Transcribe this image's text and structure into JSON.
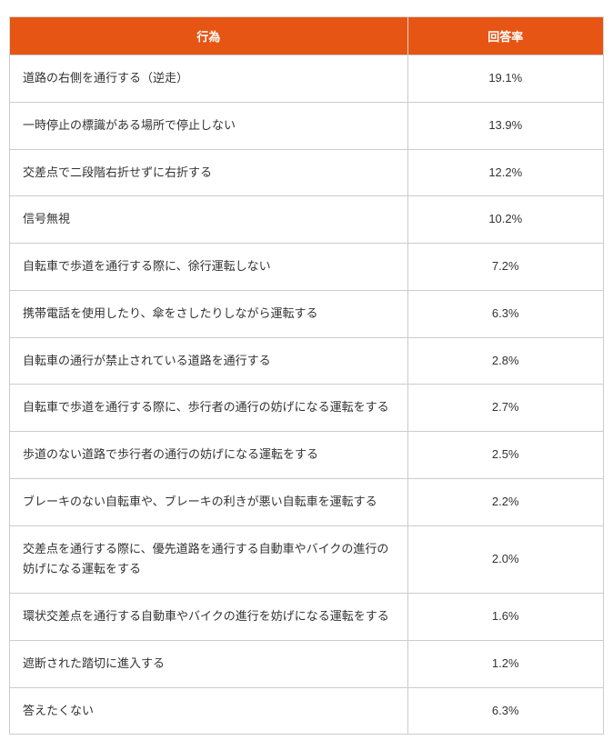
{
  "colors": {
    "header_bg": "#e65514",
    "header_text": "#ffffff",
    "border": "#cccccc",
    "body_text": "#333333",
    "row_bg": "#ffffff"
  },
  "table": {
    "columns": [
      {
        "label": "行為"
      },
      {
        "label": "回答率"
      }
    ],
    "rows": [
      {
        "action": "道路の右側を通行する（逆走）",
        "rate": "19.1%"
      },
      {
        "action": "一時停止の標識がある場所で停止しない",
        "rate": "13.9%"
      },
      {
        "action": "交差点で二段階右折せずに右折する",
        "rate": "12.2%"
      },
      {
        "action": "信号無視",
        "rate": "10.2%"
      },
      {
        "action": "自転車で歩道を通行する際に、徐行運転しない",
        "rate": "7.2%"
      },
      {
        "action": "携帯電話を使用したり、傘をさしたりしながら運転する",
        "rate": "6.3%"
      },
      {
        "action": "自転車の通行が禁止されている道路を通行する",
        "rate": "2.8%"
      },
      {
        "action": "自転車で歩道を通行する際に、歩行者の通行の妨げになる運転をする",
        "rate": "2.7%"
      },
      {
        "action": "歩道のない道路で歩行者の通行の妨げになる運転をする",
        "rate": "2.5%"
      },
      {
        "action": "ブレーキのない自転車や、ブレーキの利きが悪い自転車を運転する",
        "rate": "2.2%"
      },
      {
        "action": "交差点を通行する際に、優先道路を通行する自動車やバイクの進行の妨げになる運転をする",
        "rate": "2.0%"
      },
      {
        "action": "環状交差点を通行する自動車やバイクの進行を妨げになる運転をする",
        "rate": "1.6%"
      },
      {
        "action": "遮断された踏切に進入する",
        "rate": "1.2%"
      },
      {
        "action": "答えたくない",
        "rate": "6.3%"
      }
    ]
  },
  "chart_data": {
    "type": "table",
    "columns": [
      "行為",
      "回答率"
    ],
    "categories": [
      "道路の右側を通行する（逆走）",
      "一時停止の標識がある場所で停止しない",
      "交差点で二段階右折せずに右折する",
      "信号無視",
      "自転車で歩道を通行する際に、徐行運転しない",
      "携帯電話を使用したり、傘をさしたりしながら運転する",
      "自転車の通行が禁止されている道路を通行する",
      "自転車で歩道を通行する際に、歩行者の通行の妨げになる運転をする",
      "歩道のない道路で歩行者の通行の妨げになる運転をする",
      "ブレーキのない自転車や、ブレーキの利きが悪い自転車を運転する",
      "交差点を通行する際に、優先道路を通行する自動車やバイクの進行の妨げになる運転をする",
      "環状交差点を通行する自動車やバイクの進行を妨げになる運転をする",
      "遮断された踏切に進入する",
      "答えたくない"
    ],
    "values": [
      19.1,
      13.9,
      12.2,
      10.2,
      7.2,
      6.3,
      2.8,
      2.7,
      2.5,
      2.2,
      2.0,
      1.6,
      1.2,
      6.3
    ],
    "unit": "%"
  }
}
